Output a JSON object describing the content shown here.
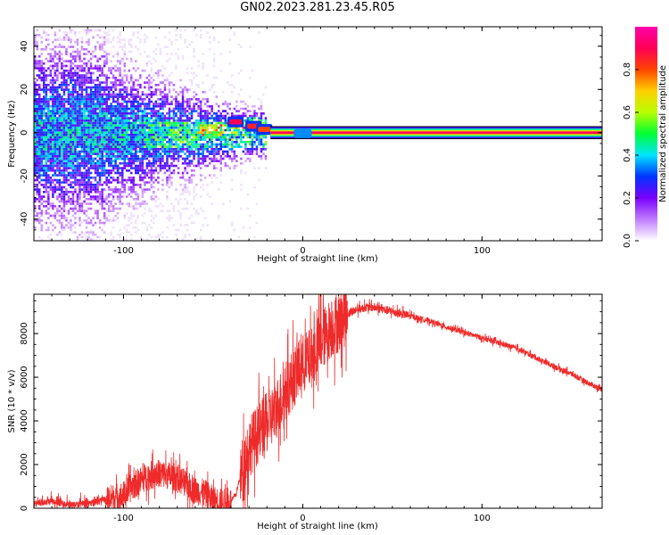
{
  "title": "GN02.2023.281.23.45.R05",
  "chart_data": [
    {
      "type": "heatmap",
      "id": "spectrogram",
      "xlabel": "Height of straight line (km)",
      "ylabel": "Frequency (Hz)",
      "xlim": [
        -150,
        167
      ],
      "ylim": [
        -50,
        49
      ],
      "xticks": [
        -100,
        0,
        100
      ],
      "yticks": [
        -40,
        -20,
        0,
        20,
        40
      ],
      "grid": false,
      "colorbar": {
        "label": "Normalized spectral amplitude",
        "range": [
          0,
          1
        ],
        "ticks": [
          "0.0",
          "0.2",
          "0.4",
          "0.6",
          "0.8"
        ],
        "colormap": [
          "#ffffff",
          "#c27cff",
          "#7a00ff",
          "#0033ff",
          "#00e5ff",
          "#00ff33",
          "#b8ff00",
          "#ffd000",
          "#ff4400",
          "#ff0055",
          "#ff00aa"
        ]
      },
      "features": {
        "stable_tone_frequency_hz": 0,
        "stable_tone_start_km": -20,
        "noisy_region_km": [
          -150,
          -40
        ]
      }
    },
    {
      "type": "line",
      "id": "snr",
      "xlabel": "Height of straight line (km)",
      "ylabel": "SNR (10 * v/v)",
      "xlim": [
        -150,
        167
      ],
      "ylim": [
        0,
        9800
      ],
      "xticks": [
        -100,
        0,
        100
      ],
      "yticks": [
        0,
        2000,
        4000,
        6000,
        8000
      ],
      "grid": false,
      "color": "#ee2a2a",
      "x": [
        -150,
        -140,
        -130,
        -120,
        -110,
        -100,
        -95,
        -90,
        -85,
        -80,
        -75,
        -70,
        -65,
        -60,
        -55,
        -50,
        -45,
        -40,
        -37,
        -34,
        -30,
        -25,
        -20,
        -15,
        -10,
        -5,
        0,
        5,
        10,
        15,
        20,
        25,
        30,
        35,
        40,
        50,
        60,
        70,
        80,
        90,
        100,
        110,
        120,
        130,
        140,
        150,
        160,
        167
      ],
      "y": [
        200,
        300,
        150,
        200,
        400,
        600,
        1000,
        1300,
        1500,
        1600,
        1500,
        1400,
        1100,
        800,
        700,
        400,
        250,
        300,
        700,
        1800,
        2800,
        3400,
        3900,
        4500,
        5300,
        6000,
        6600,
        6900,
        7600,
        8200,
        8500,
        8900,
        9100,
        9200,
        9200,
        9000,
        8800,
        8600,
        8300,
        8050,
        7800,
        7550,
        7300,
        6900,
        6500,
        6150,
        5700,
        5450
      ]
    }
  ]
}
